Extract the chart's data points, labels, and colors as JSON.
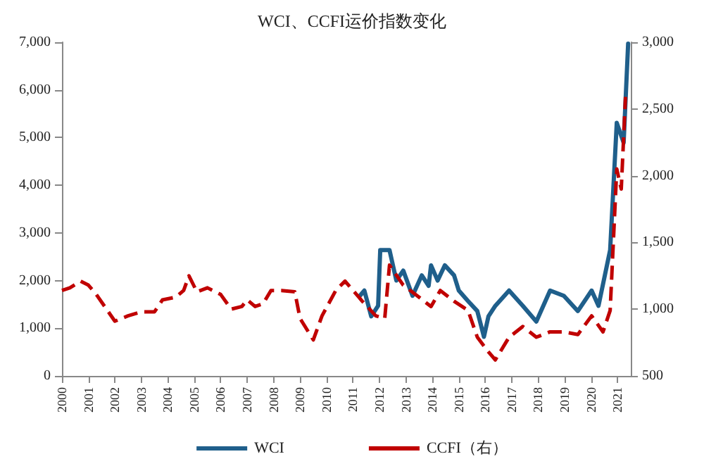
{
  "chart_data": {
    "type": "line",
    "title": "WCI、CCFI运价指数变化",
    "legend": "bottom",
    "grid": false,
    "marker": "none",
    "xlim": [
      2000,
      2021.5
    ],
    "xticks": [
      2000,
      2001,
      2002,
      2003,
      2004,
      2005,
      2006,
      2007,
      2008,
      2009,
      2010,
      2011,
      2012,
      2013,
      2014,
      2015,
      2016,
      2017,
      2018,
      2019,
      2020,
      2021
    ],
    "ylim": [
      0,
      7000
    ],
    "yticks": [
      {
        "value": 0,
        "label": "0"
      },
      {
        "value": 1000,
        "label": "1,000"
      },
      {
        "value": 2000,
        "label": "2,000"
      },
      {
        "value": 3000,
        "label": "3,000"
      },
      {
        "value": 4000,
        "label": "4,000"
      },
      {
        "value": 5000,
        "label": "5,000"
      },
      {
        "value": 6000,
        "label": "6,000"
      },
      {
        "value": 7000,
        "label": "7,000"
      }
    ],
    "y2lim": [
      500,
      3000
    ],
    "y2ticks": [
      {
        "value": 500,
        "label": "500"
      },
      {
        "value": 1000,
        "label": "1,000"
      },
      {
        "value": 1500,
        "label": "1,500"
      },
      {
        "value": 2000,
        "label": "2,000"
      },
      {
        "value": 2500,
        "label": "2,500"
      },
      {
        "value": 3000,
        "label": "3,000"
      }
    ],
    "series": [
      {
        "name": "WCI",
        "color": "#1f5f8b",
        "line_style": "solid",
        "x": [
          2011.26,
          2011.43,
          2011.69,
          2011.95,
          2012.03,
          2012.38,
          2012.64,
          2012.9,
          2013.25,
          2013.6,
          2013.86,
          2013.95,
          2014.2,
          2014.47,
          2014.82,
          2015,
          2015.35,
          2015.7,
          2015.95,
          2016.12,
          2016.38,
          2016.9,
          2017.42,
          2017.93,
          2018.45,
          2018.97,
          2019.5,
          2020.02,
          2020.28,
          2020.72,
          2020.97,
          2021.23,
          2021.4
        ],
        "values": [
          1680,
          1790,
          1250,
          1470,
          2640,
          2640,
          2000,
          2210,
          1680,
          2110,
          1890,
          2320,
          2000,
          2320,
          2110,
          1790,
          1570,
          1360,
          820,
          1250,
          1470,
          1790,
          1470,
          1140,
          1790,
          1680,
          1360,
          1790,
          1470,
          2640,
          5310,
          4890,
          6970
        ]
      },
      {
        "name": "CCFI（右）",
        "color": "#c00000",
        "line_style": "dashed",
        "axis": "y2",
        "x": [
          2000,
          2000.3,
          2000.7,
          2001,
          2001.3,
          2002,
          2002.5,
          2003,
          2003.5,
          2003.8,
          2004.3,
          2004.6,
          2004.8,
          2005.1,
          2005.5,
          2006,
          2006.4,
          2006.8,
          2007,
          2007.3,
          2007.6,
          2007.9,
          2008.3,
          2008.8,
          2009,
          2009.5,
          2009.83,
          2010.35,
          2010.7,
          2011.35,
          2011.86,
          2012.2,
          2012.38,
          2012.9,
          2013.43,
          2013.95,
          2014.3,
          2014.82,
          2015.35,
          2015.7,
          2016.12,
          2016.38,
          2016.9,
          2017.42,
          2017.93,
          2018.45,
          2018.97,
          2019.5,
          2020.02,
          2020.45,
          2020.72,
          2020.97,
          2021.14,
          2021.3
        ],
        "values": [
          1140,
          1160,
          1210,
          1180,
          1110,
          910,
          950,
          980,
          980,
          1070,
          1090,
          1140,
          1250,
          1130,
          1160,
          1110,
          1000,
          1020,
          1070,
          1020,
          1040,
          1140,
          1140,
          1130,
          930,
          770,
          950,
          1140,
          1210,
          1060,
          950,
          930,
          1330,
          1180,
          1100,
          1020,
          1140,
          1060,
          990,
          790,
          680,
          620,
          790,
          870,
          790,
          830,
          830,
          810,
          950,
          830,
          990,
          2050,
          1900,
          2590
        ]
      }
    ]
  }
}
